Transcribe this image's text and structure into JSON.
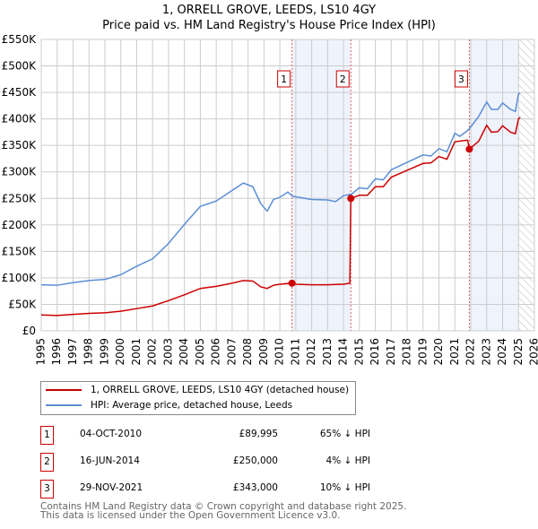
{
  "chart_data": {
    "type": "line",
    "title": "1, ORRELL GROVE, LEEDS, LS10 4GY",
    "subtitle": "Price paid vs. HM Land Registry's House Price Index (HPI)",
    "xlim": [
      1995,
      2026
    ],
    "ylim": [
      0,
      550000
    ],
    "x_ticks": [
      "1995",
      "1996",
      "1997",
      "1998",
      "1999",
      "2000",
      "2001",
      "2002",
      "2003",
      "2004",
      "2005",
      "2006",
      "2007",
      "2008",
      "2009",
      "2010",
      "2011",
      "2012",
      "2013",
      "2014",
      "2015",
      "2016",
      "2017",
      "2018",
      "2019",
      "2020",
      "2021",
      "2022",
      "2023",
      "2024",
      "2025",
      "2026"
    ],
    "y_ticks": [
      "£0",
      "£50K",
      "£100K",
      "£150K",
      "£200K",
      "£250K",
      "£300K",
      "£350K",
      "£400K",
      "£450K",
      "£500K",
      "£550K"
    ],
    "grid": true,
    "shaded_periods": [
      [
        2010.76,
        2014.46
      ],
      [
        2021.91,
        2025.0
      ]
    ],
    "forecast_hatch_from": 2025.0,
    "series": [
      {
        "name": "1, ORRELL GROVE, LEEDS, LS10 4GY (detached house)",
        "color": "#cc0000",
        "x": [
          1995,
          1996,
          1997,
          1998,
          1999,
          2000,
          2001,
          2002,
          2003,
          2004,
          2005,
          2006,
          2007,
          2007.7,
          2008.3,
          2008.8,
          2009.2,
          2009.6,
          2010,
          2010.76,
          2011,
          2012,
          2013,
          2014,
          2014.4,
          2014.46,
          2015,
          2015.5,
          2016,
          2016.5,
          2017,
          2018,
          2019,
          2019.5,
          2020,
          2020.5,
          2021,
          2021.8,
          2021.91,
          2022.5,
          2023,
          2023.3,
          2023.7,
          2024,
          2024.5,
          2024.8,
          2025,
          2025.1
        ],
        "y": [
          30000,
          29000,
          31000,
          33000,
          34000,
          37000,
          42000,
          47000,
          57000,
          68000,
          80000,
          84000,
          90000,
          95000,
          94000,
          83000,
          80000,
          86000,
          88000,
          89995,
          88000,
          87000,
          87000,
          88000,
          90000,
          250000,
          256000,
          256000,
          272000,
          272000,
          290000,
          303000,
          316000,
          317000,
          329000,
          324000,
          357000,
          360000,
          343000,
          358000,
          388000,
          375000,
          376000,
          387000,
          375000,
          372000,
          400000,
          403000
        ]
      },
      {
        "name": "HPI: Average price, detached house, Leeds",
        "color": "#5b8ed6",
        "x": [
          1995,
          1996,
          1997,
          1998,
          1999,
          2000,
          2001,
          2002,
          2003,
          2004,
          2005,
          2006,
          2007,
          2007.7,
          2008.3,
          2008.8,
          2009.2,
          2009.6,
          2010,
          2010.5,
          2010.8,
          2011,
          2012,
          2013,
          2013.5,
          2014,
          2014.5,
          2015,
          2015.5,
          2016,
          2016.5,
          2017,
          2018,
          2019,
          2019.5,
          2020,
          2020.5,
          2021,
          2021.3,
          2021.8,
          2022,
          2022.5,
          2023,
          2023.3,
          2023.7,
          2024,
          2024.5,
          2024.8,
          2025,
          2025.1
        ],
        "y": [
          87000,
          86000,
          91000,
          95000,
          97000,
          106000,
          122000,
          136000,
          165000,
          201000,
          235000,
          245000,
          265000,
          279000,
          272000,
          240000,
          226000,
          248000,
          252000,
          262000,
          254000,
          253000,
          248000,
          247000,
          244000,
          255000,
          258000,
          270000,
          268000,
          287000,
          285000,
          304000,
          318000,
          332000,
          330000,
          344000,
          338000,
          373000,
          367000,
          378000,
          385000,
          405000,
          432000,
          418000,
          418000,
          430000,
          418000,
          414000,
          447000,
          449000
        ]
      }
    ],
    "sales": [
      {
        "label": "1",
        "date": "04-OCT-2010",
        "x": 2010.76,
        "price": "£89,995",
        "value": 89995,
        "hpi": "65% ↓ HPI"
      },
      {
        "label": "2",
        "date": "16-JUN-2014",
        "x": 2014.46,
        "price": "£250,000",
        "value": 250000,
        "hpi": "4% ↓ HPI"
      },
      {
        "label": "3",
        "date": "29-NOV-2021",
        "x": 2021.91,
        "price": "£343,000",
        "value": 343000,
        "hpi": "10% ↓ HPI"
      }
    ]
  },
  "footer": [
    "Contains HM Land Registry data © Crown copyright and database right 2025.",
    "This data is licensed under the Open Government Licence v3.0."
  ]
}
